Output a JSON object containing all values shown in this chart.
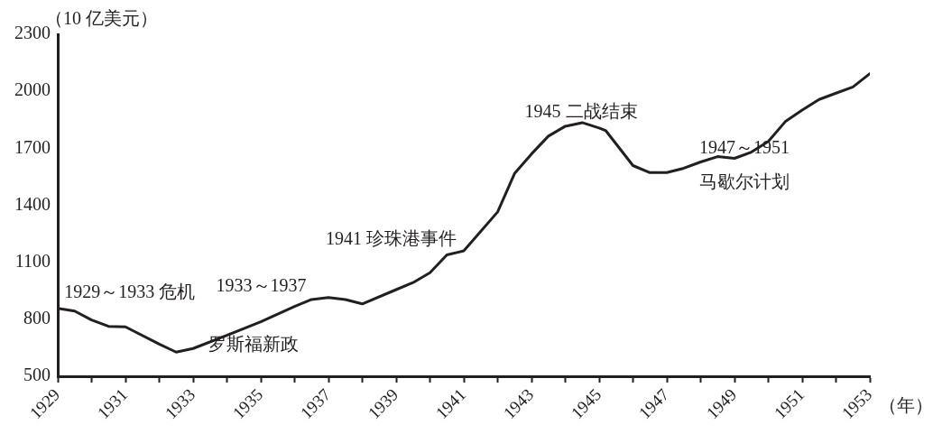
{
  "chart_data": {
    "type": "line",
    "ylabel": "（10 亿美元）",
    "xlabel": "（年）",
    "x": [
      1929,
      1929.5,
      1930,
      1930.5,
      1931,
      1932,
      1932.5,
      1933,
      1934,
      1935,
      1936,
      1936.5,
      1937,
      1937.5,
      1938,
      1939,
      1939.5,
      1940,
      1940.5,
      1941,
      1942,
      1942.5,
      1943,
      1943.5,
      1944,
      1944.5,
      1945,
      1945.2,
      1946,
      1946.5,
      1947,
      1947.5,
      1948,
      1948.5,
      1949,
      1949.5,
      1950,
      1950.5,
      1951,
      1951.5,
      1952,
      1952.5,
      1953
    ],
    "series": [
      {
        "color": "#231f20",
        "values": [
          857,
          843,
          796,
          763,
          760,
          669,
          627,
          646,
          716,
          787,
          867,
          904,
          914,
          904,
          881,
          956,
          993,
          1045,
          1139,
          1160,
          1365,
          1567,
          1670,
          1764,
          1816,
          1835,
          1807,
          1792,
          1609,
          1572,
          1572,
          1595,
          1628,
          1656,
          1647,
          1680,
          1736,
          1840,
          1901,
          1957,
          1990,
          2023,
          2093
        ]
      }
    ],
    "xlim": [
      1929,
      1953
    ],
    "xticks": [
      1929,
      {
        "value": 1930,
        "label": null
      },
      1931,
      {
        "value": 1932,
        "label": null
      },
      1933,
      {
        "value": 1934,
        "label": null
      },
      1935,
      {
        "value": 1936,
        "label": null
      },
      1937,
      {
        "value": 1938,
        "label": null
      },
      1939,
      {
        "value": 1940,
        "label": null
      },
      1941,
      {
        "value": 1942,
        "label": null
      },
      1943,
      {
        "value": 1944,
        "label": null
      },
      1945,
      {
        "value": 1946,
        "label": null
      },
      1947,
      {
        "value": 1948,
        "label": null
      },
      1949,
      {
        "value": 1950,
        "label": null
      },
      1951,
      {
        "value": 1952,
        "label": null
      },
      1953
    ],
    "ylim": [
      500,
      2300
    ],
    "yticks": [
      500,
      800,
      1100,
      1400,
      1700,
      2000,
      2300
    ],
    "grid": false,
    "legend": false,
    "marker": "none",
    "line_style": "solid",
    "annotations": [
      "1929～1933 危机",
      "1933～1937",
      "罗斯福新政",
      "1941 珍珠港事件",
      "1945 二战结束",
      "1947～1951",
      "马歇尔计划"
    ]
  }
}
